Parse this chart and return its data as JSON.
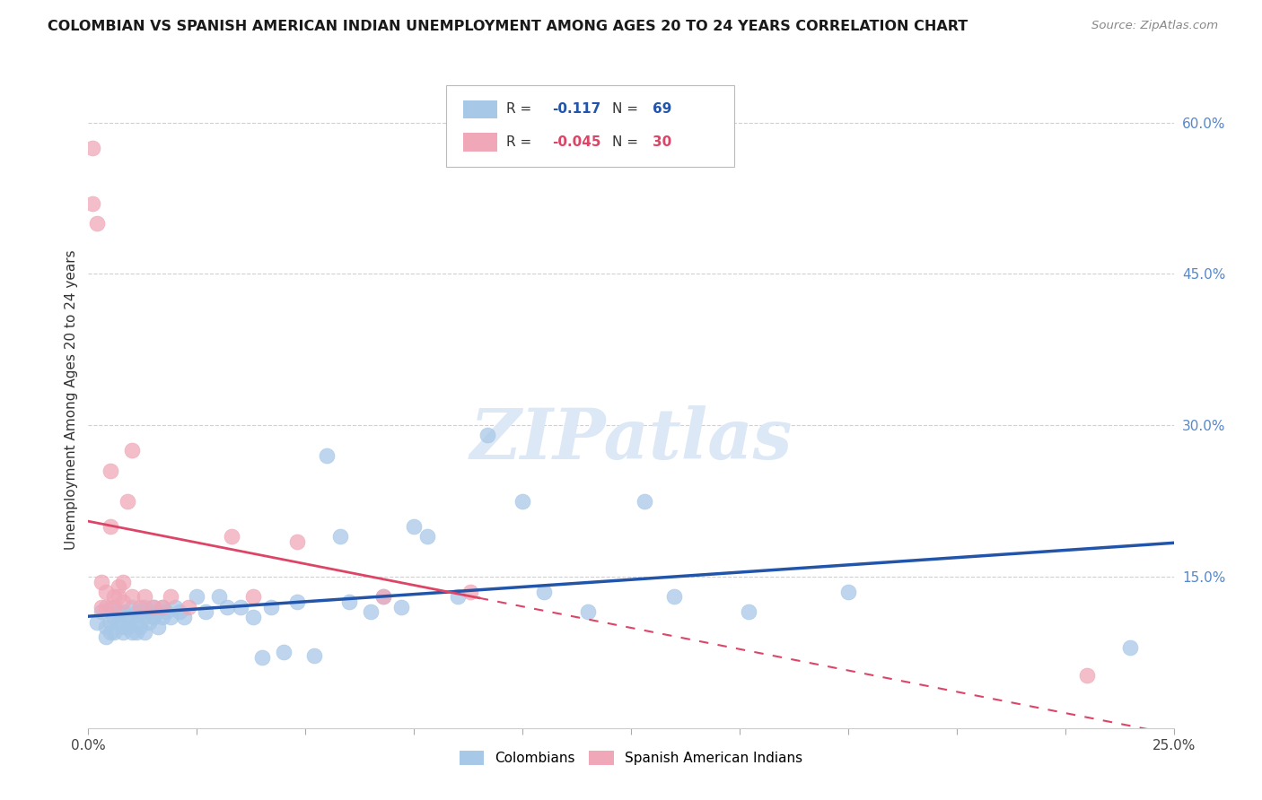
{
  "title": "COLOMBIAN VS SPANISH AMERICAN INDIAN UNEMPLOYMENT AMONG AGES 20 TO 24 YEARS CORRELATION CHART",
  "source": "Source: ZipAtlas.com",
  "ylabel": "Unemployment Among Ages 20 to 24 years",
  "xlim": [
    0.0,
    0.25
  ],
  "ylim": [
    0.0,
    0.65
  ],
  "x_ticks": [
    0.0,
    0.025,
    0.05,
    0.075,
    0.1,
    0.125,
    0.15,
    0.175,
    0.2,
    0.225,
    0.25
  ],
  "x_tick_labels": [
    "0.0%",
    "",
    "",
    "",
    "",
    "",
    "",
    "",
    "",
    "",
    "25.0%"
  ],
  "y_ticks_right": [
    0.15,
    0.3,
    0.45,
    0.6
  ],
  "y_tick_labels_right": [
    "15.0%",
    "30.0%",
    "45.0%",
    "60.0%"
  ],
  "grid_color": "#d0d0d0",
  "background_color": "#ffffff",
  "watermark_text": "ZIPatlas",
  "watermark_color": "#dce8f5",
  "blue_color": "#a8c8e8",
  "pink_color": "#f0a8b8",
  "blue_line_color": "#2255aa",
  "pink_line_color": "#dd4466",
  "r1_color": "#2255aa",
  "r2_color": "#dd4466",
  "colombians_x": [
    0.002,
    0.003,
    0.004,
    0.004,
    0.005,
    0.005,
    0.005,
    0.006,
    0.006,
    0.007,
    0.007,
    0.008,
    0.008,
    0.008,
    0.009,
    0.009,
    0.01,
    0.01,
    0.01,
    0.011,
    0.011,
    0.011,
    0.012,
    0.012,
    0.013,
    0.013,
    0.013,
    0.014,
    0.014,
    0.015,
    0.015,
    0.016,
    0.016,
    0.017,
    0.017,
    0.018,
    0.019,
    0.02,
    0.021,
    0.022,
    0.025,
    0.027,
    0.03,
    0.032,
    0.035,
    0.038,
    0.04,
    0.042,
    0.045,
    0.048,
    0.052,
    0.055,
    0.058,
    0.06,
    0.065,
    0.068,
    0.072,
    0.075,
    0.078,
    0.085,
    0.092,
    0.1,
    0.105,
    0.115,
    0.128,
    0.135,
    0.152,
    0.175,
    0.24
  ],
  "colombians_y": [
    0.105,
    0.115,
    0.1,
    0.09,
    0.12,
    0.105,
    0.095,
    0.11,
    0.095,
    0.115,
    0.105,
    0.1,
    0.115,
    0.095,
    0.11,
    0.1,
    0.12,
    0.11,
    0.095,
    0.115,
    0.105,
    0.095,
    0.115,
    0.1,
    0.12,
    0.11,
    0.095,
    0.115,
    0.105,
    0.12,
    0.11,
    0.115,
    0.1,
    0.11,
    0.12,
    0.115,
    0.11,
    0.12,
    0.115,
    0.11,
    0.13,
    0.115,
    0.13,
    0.12,
    0.12,
    0.11,
    0.07,
    0.12,
    0.075,
    0.125,
    0.072,
    0.27,
    0.19,
    0.125,
    0.115,
    0.13,
    0.12,
    0.2,
    0.19,
    0.13,
    0.29,
    0.225,
    0.135,
    0.115,
    0.225,
    0.13,
    0.115,
    0.135,
    0.08
  ],
  "spanish_x": [
    0.001,
    0.001,
    0.002,
    0.003,
    0.003,
    0.004,
    0.004,
    0.005,
    0.005,
    0.006,
    0.006,
    0.007,
    0.007,
    0.008,
    0.008,
    0.009,
    0.01,
    0.01,
    0.012,
    0.013,
    0.015,
    0.017,
    0.019,
    0.023,
    0.033,
    0.038,
    0.048,
    0.068,
    0.088,
    0.23
  ],
  "spanish_y": [
    0.575,
    0.52,
    0.5,
    0.12,
    0.145,
    0.135,
    0.12,
    0.2,
    0.255,
    0.13,
    0.12,
    0.14,
    0.13,
    0.125,
    0.145,
    0.225,
    0.275,
    0.13,
    0.12,
    0.13,
    0.12,
    0.12,
    0.13,
    0.12,
    0.19,
    0.13,
    0.185,
    0.13,
    0.135,
    0.052
  ]
}
